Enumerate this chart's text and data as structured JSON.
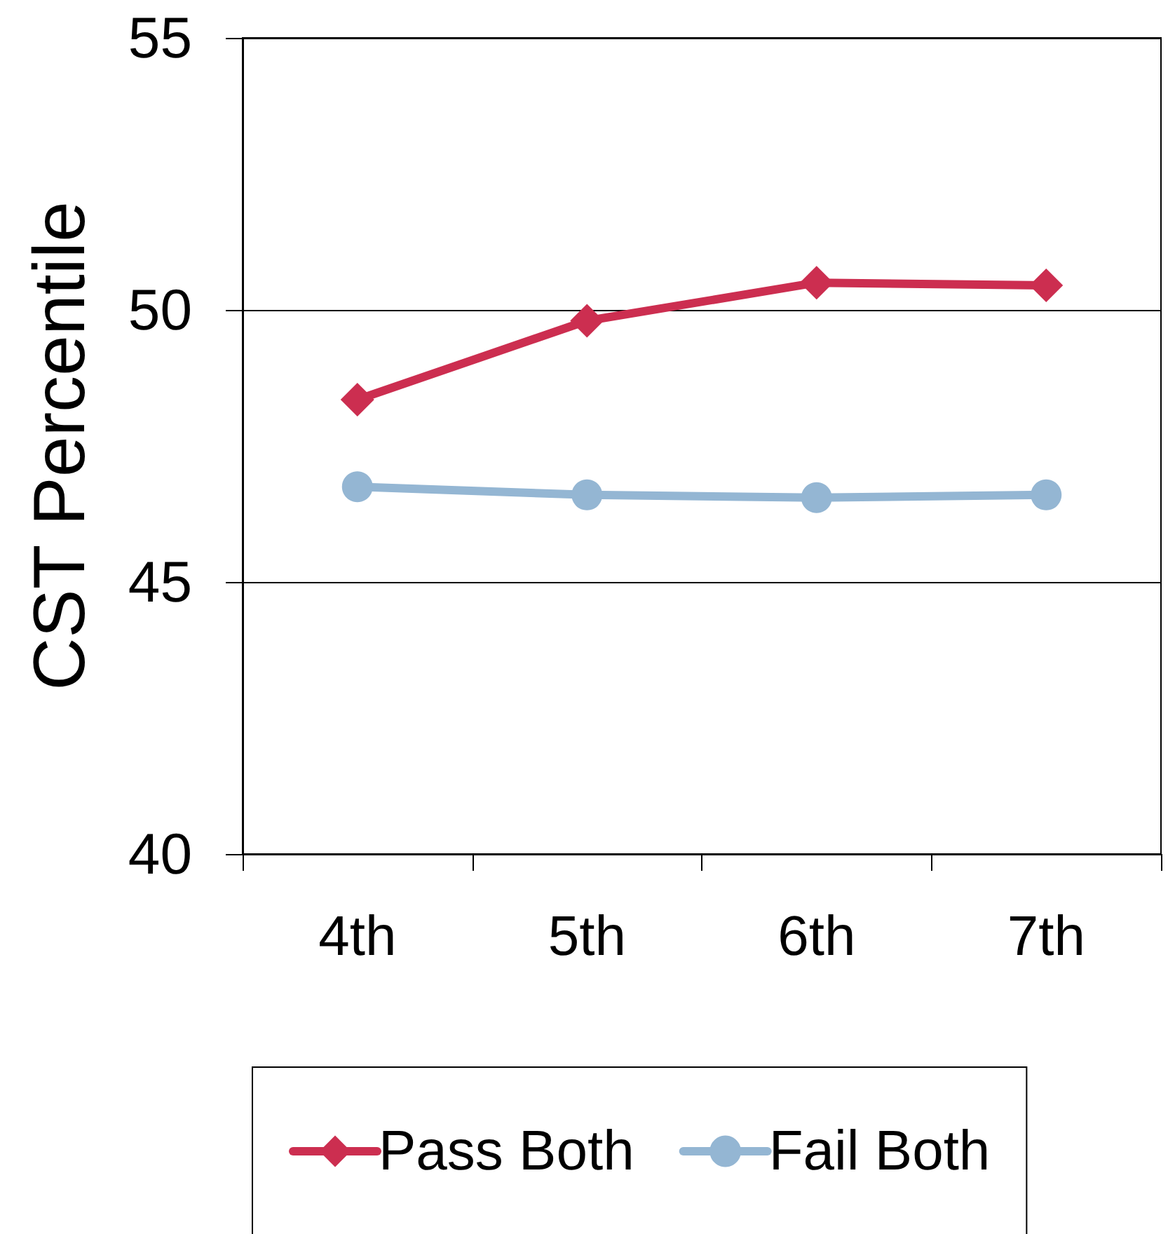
{
  "chart_data": {
    "type": "line",
    "ylabel": "CST Percentile",
    "categories": [
      "4th",
      "5th",
      "6th",
      "7th"
    ],
    "series": [
      {
        "name": "Pass Both",
        "color": "#cc2e50",
        "marker": "diamond",
        "values": [
          48.35,
          49.8,
          50.5,
          50.45
        ]
      },
      {
        "name": "Fail Both",
        "color": "#94b6d3",
        "marker": "circle",
        "values": [
          46.75,
          46.6,
          46.55,
          46.6
        ]
      }
    ],
    "ylim": [
      40,
      55
    ],
    "yticks": [
      40,
      45,
      50,
      55
    ],
    "grid": "y",
    "legend": "bottom",
    "line_style": "solid"
  }
}
